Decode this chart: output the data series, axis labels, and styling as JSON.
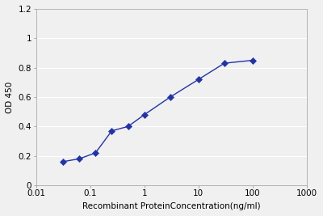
{
  "x": [
    0.031,
    0.063,
    0.125,
    0.25,
    0.5,
    1.0,
    3.0,
    10.0,
    30.0,
    100.0
  ],
  "y": [
    0.16,
    0.18,
    0.22,
    0.37,
    0.4,
    0.48,
    0.6,
    0.72,
    0.83,
    0.85
  ],
  "line_color": "#2233AA",
  "marker": "D",
  "marker_color": "#2233AA",
  "marker_size": 4,
  "linewidth": 1.0,
  "xlabel": "Recombinant ProteinConcentration(ng/ml)",
  "ylabel": "OD 450",
  "xlim": [
    0.01,
    1000
  ],
  "ylim": [
    0,
    1.2
  ],
  "yticks": [
    0,
    0.2,
    0.4,
    0.6,
    0.8,
    1.0,
    1.2
  ],
  "xticks": [
    0.01,
    0.1,
    1,
    10,
    100,
    1000
  ],
  "xtick_labels": [
    "0.01",
    "0.1",
    "1",
    "10",
    "100",
    "1000"
  ],
  "fig_facecolor": "#f0f0f0",
  "plot_facecolor": "#f0f0f0",
  "grid_color": "#ffffff",
  "xlabel_fontsize": 7.5,
  "ylabel_fontsize": 7.5,
  "tick_fontsize": 7.5
}
